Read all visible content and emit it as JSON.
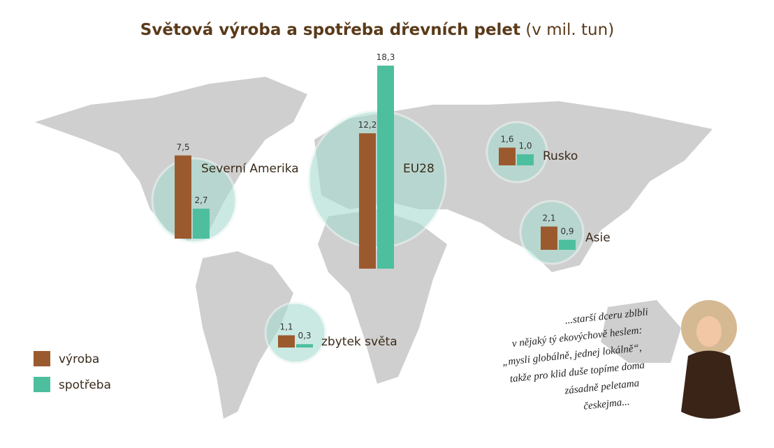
{
  "chart_data": {
    "type": "bar",
    "title": "Světová výroba a spotřeba dřevních pelet",
    "subtitle": "(v mil. tun)",
    "categories": [
      "Severní Amerika",
      "EU28",
      "Rusko",
      "Asie",
      "zbytek světa"
    ],
    "series": [
      {
        "name": "výroba",
        "color": "#9b5a2e",
        "values": [
          7.5,
          12.2,
          1.6,
          2.1,
          1.1
        ],
        "value_labels": [
          "7,5",
          "12,2",
          "1,6",
          "2,1",
          "1,1"
        ]
      },
      {
        "name": "spotřeba",
        "color": "#4dbf9e",
        "values": [
          2.7,
          18.3,
          1.0,
          0.9,
          0.3
        ],
        "value_labels": [
          "2,7",
          "18,3",
          "1,0",
          "0,9",
          "0,3"
        ]
      }
    ],
    "legend_position": "lower left"
  },
  "quote": {
    "lines": [
      "...starší dceru zblbli",
      "v nějaký tý ekovýchově heslem:",
      "„mysli globálně, jednej lokálně“,",
      "takže pro klid duše topíme doma",
      "zásadně peletama",
      "českejma..."
    ]
  }
}
